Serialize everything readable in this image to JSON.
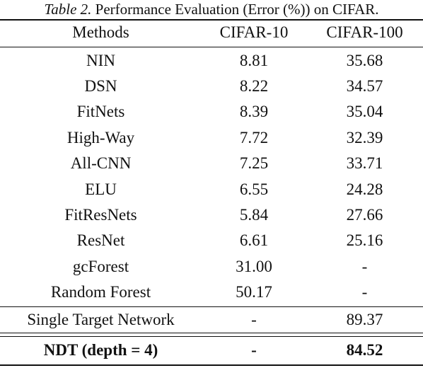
{
  "caption": {
    "label": "Table 2.",
    "text": "Performance Evaluation (Error (%)) on CIFAR."
  },
  "header": [
    "Methods",
    "CIFAR-10",
    "CIFAR-100"
  ],
  "rows": [
    [
      "NIN",
      "8.81",
      "35.68"
    ],
    [
      "DSN",
      "8.22",
      "34.57"
    ],
    [
      "FitNets",
      "8.39",
      "35.04"
    ],
    [
      "High-Way",
      "7.72",
      "32.39"
    ],
    [
      "All-CNN",
      "7.25",
      "33.71"
    ],
    [
      "ELU",
      "6.55",
      "24.28"
    ],
    [
      "FitResNets",
      "5.84",
      "27.66"
    ],
    [
      "ResNet",
      "6.61",
      "25.16"
    ],
    [
      "gcForest",
      "31.00",
      "-"
    ],
    [
      "Random Forest",
      "50.17",
      "-"
    ]
  ],
  "single_target": [
    "Single Target Network",
    "-",
    "89.37"
  ],
  "ndt": [
    "NDT (depth = 4)",
    "-",
    "84.52"
  ]
}
